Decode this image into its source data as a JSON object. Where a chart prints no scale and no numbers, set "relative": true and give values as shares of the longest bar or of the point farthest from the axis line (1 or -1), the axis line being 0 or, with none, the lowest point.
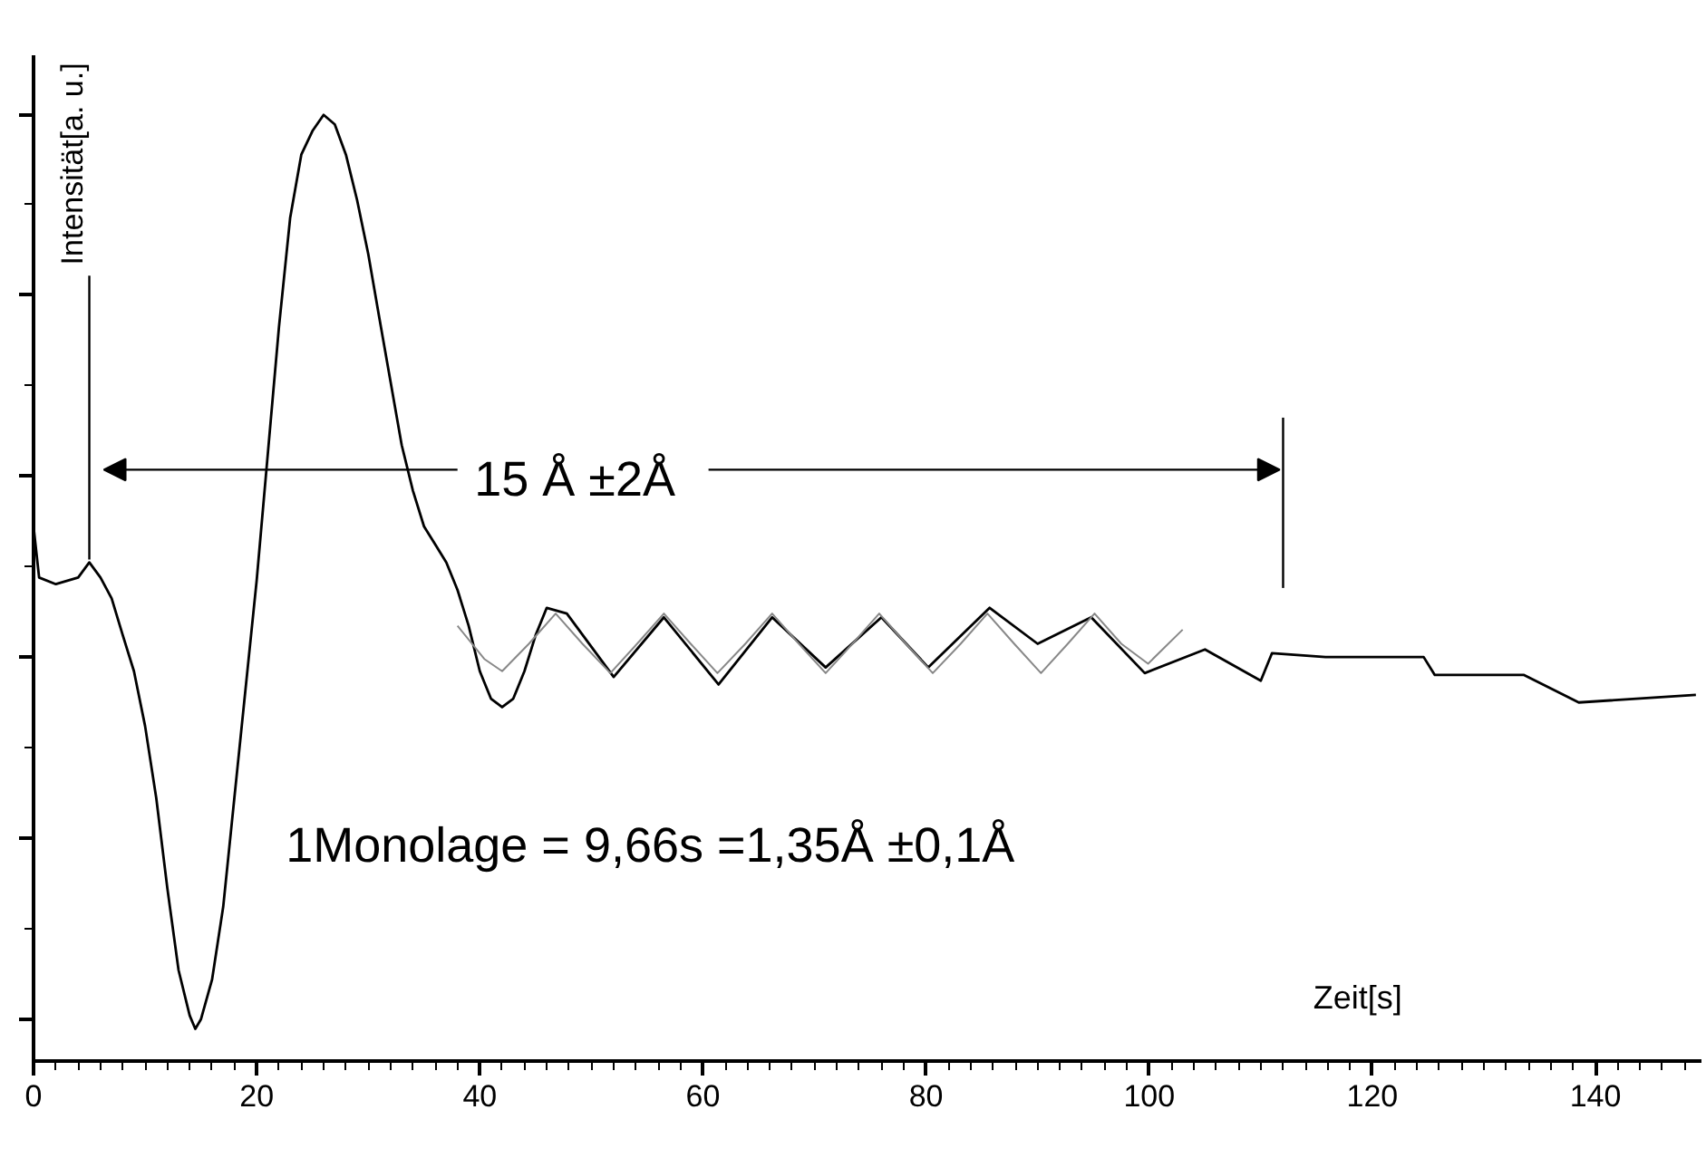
{
  "chart_data": {
    "type": "line",
    "relative": true,
    "xlabel": "Zeit[s]",
    "ylabel": "Intensität[a. u.]",
    "xlim": [
      0,
      149.5
    ],
    "xticks": [
      0,
      20,
      40,
      60,
      80,
      100,
      120,
      140
    ],
    "grid": false,
    "ref_lines": [
      {
        "axis": "x",
        "value": 5,
        "label": null
      },
      {
        "axis": "x",
        "value": 112,
        "label": null
      }
    ],
    "annotations": [
      "15 Å ±2Å",
      "1Monolage = 9,66s =1,35Å ±0,1Å"
    ],
    "series": [
      {
        "color": "#000000",
        "x": [
          0,
          0.5,
          2,
          4,
          5,
          6,
          7,
          8,
          9,
          10,
          11,
          12,
          13,
          14,
          14.5,
          15,
          16,
          17,
          18,
          19,
          20,
          21,
          22,
          23,
          24,
          25,
          26,
          27,
          28,
          29,
          30,
          31,
          32,
          33,
          34,
          35,
          36,
          37,
          38,
          39,
          40,
          41,
          42,
          43,
          44,
          45,
          46,
          47.8,
          52,
          56.5,
          61.4,
          66.2,
          71,
          76,
          80.2,
          85.7,
          90,
          94.8,
          99.6,
          105,
          110,
          111,
          115.8,
          124.6,
          125.6,
          133.6,
          138.5,
          149
        ],
        "values": [
          0.565,
          0.511,
          0.504,
          0.511,
          0.527,
          0.511,
          0.489,
          0.45,
          0.412,
          0.354,
          0.278,
          0.182,
          0.096,
          0.048,
          0.034,
          0.044,
          0.086,
          0.163,
          0.278,
          0.393,
          0.508,
          0.642,
          0.776,
          0.891,
          0.958,
          0.983,
          1.0,
          0.99,
          0.958,
          0.91,
          0.853,
          0.785,
          0.718,
          0.651,
          0.603,
          0.565,
          0.546,
          0.527,
          0.498,
          0.46,
          0.412,
          0.383,
          0.374,
          0.383,
          0.412,
          0.45,
          0.479,
          0.473,
          0.406,
          0.469,
          0.398,
          0.469,
          0.416,
          0.469,
          0.416,
          0.479,
          0.441,
          0.469,
          0.41,
          0.435,
          0.402,
          0.431,
          0.427,
          0.427,
          0.408,
          0.408,
          0.379,
          0.387
        ]
      },
      {
        "color": "#888888",
        "x": [
          38,
          40.4,
          42,
          44.4,
          46.8,
          49.2,
          51.7,
          54.1,
          56.5,
          58.9,
          61.3,
          63.8,
          66.2,
          68.6,
          71,
          73.4,
          75.8,
          78.2,
          80.6,
          83.1,
          85.5,
          87.9,
          90.3,
          92.7,
          95.1,
          97.5,
          99.9,
          103
        ],
        "values": [
          0.46,
          0.425,
          0.412,
          0.441,
          0.473,
          0.441,
          0.41,
          0.441,
          0.473,
          0.441,
          0.41,
          0.441,
          0.473,
          0.441,
          0.41,
          0.441,
          0.473,
          0.441,
          0.41,
          0.441,
          0.473,
          0.441,
          0.41,
          0.441,
          0.473,
          0.441,
          0.42,
          0.456
        ]
      }
    ]
  }
}
